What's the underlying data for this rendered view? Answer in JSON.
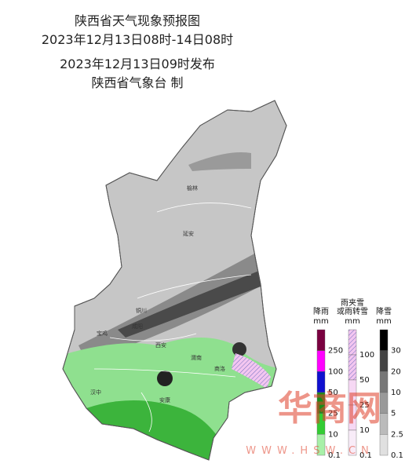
{
  "header": {
    "title": "陕西省天气现象预报图",
    "period": "2023年12月13日08时-14日08时",
    "issued": "2023年12月13日09时发布",
    "agency": "陕西省气象台 制"
  },
  "cities": [
    {
      "label": "榆林"
    },
    {
      "label": "延安"
    },
    {
      "label": "宝鸡"
    },
    {
      "label": "咸阳"
    },
    {
      "label": "铜川"
    },
    {
      "label": "西安"
    },
    {
      "label": "渭南"
    },
    {
      "label": "商洛"
    },
    {
      "label": "汉中"
    },
    {
      "label": "安康"
    }
  ],
  "legends": [
    {
      "title": [
        "降雨"
      ],
      "unit": "mm",
      "levels": [
        "250",
        "100",
        "50",
        "25",
        "10",
        "0.1"
      ]
    },
    {
      "title": [
        "雨夹雪",
        "或雨转雪"
      ],
      "unit": "mm",
      "levels": [
        "100",
        "50",
        "25",
        "10",
        "0.1"
      ]
    },
    {
      "title": [
        "降雪"
      ],
      "unit": "mm",
      "levels": [
        "30",
        "20",
        "10",
        "5",
        "2.5",
        "0.1"
      ]
    }
  ],
  "watermark": {
    "brand": "华商网",
    "url": "WWW.HSW.CN"
  }
}
